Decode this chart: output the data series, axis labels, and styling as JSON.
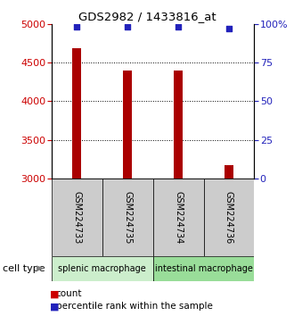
{
  "title": "GDS2982 / 1433816_at",
  "samples": [
    "GSM224733",
    "GSM224735",
    "GSM224734",
    "GSM224736"
  ],
  "counts": [
    4680,
    4390,
    4390,
    3175
  ],
  "percentiles": [
    98,
    98,
    98,
    97
  ],
  "ylim_left": [
    3000,
    5000
  ],
  "ylim_right": [
    0,
    100
  ],
  "yticks_left": [
    3000,
    3500,
    4000,
    4500,
    5000
  ],
  "yticks_right": [
    0,
    25,
    50,
    75,
    100
  ],
  "bar_color": "#aa0000",
  "dot_color": "#2222bb",
  "cell_types": [
    {
      "label": "splenic macrophage",
      "samples": [
        0,
        1
      ],
      "color": "#cceecc"
    },
    {
      "label": "intestinal macrophage",
      "samples": [
        2,
        3
      ],
      "color": "#99dd99"
    }
  ],
  "legend_count_color": "#cc0000",
  "legend_dot_color": "#2222bb",
  "cell_type_label": "cell type",
  "left_tick_color": "#cc0000",
  "right_tick_color": "#2222bb",
  "plot_bg": "#ffffff",
  "sample_box_color": "#cccccc",
  "bar_width": 0.18,
  "grid_yticks": [
    3500,
    4000,
    4500
  ]
}
